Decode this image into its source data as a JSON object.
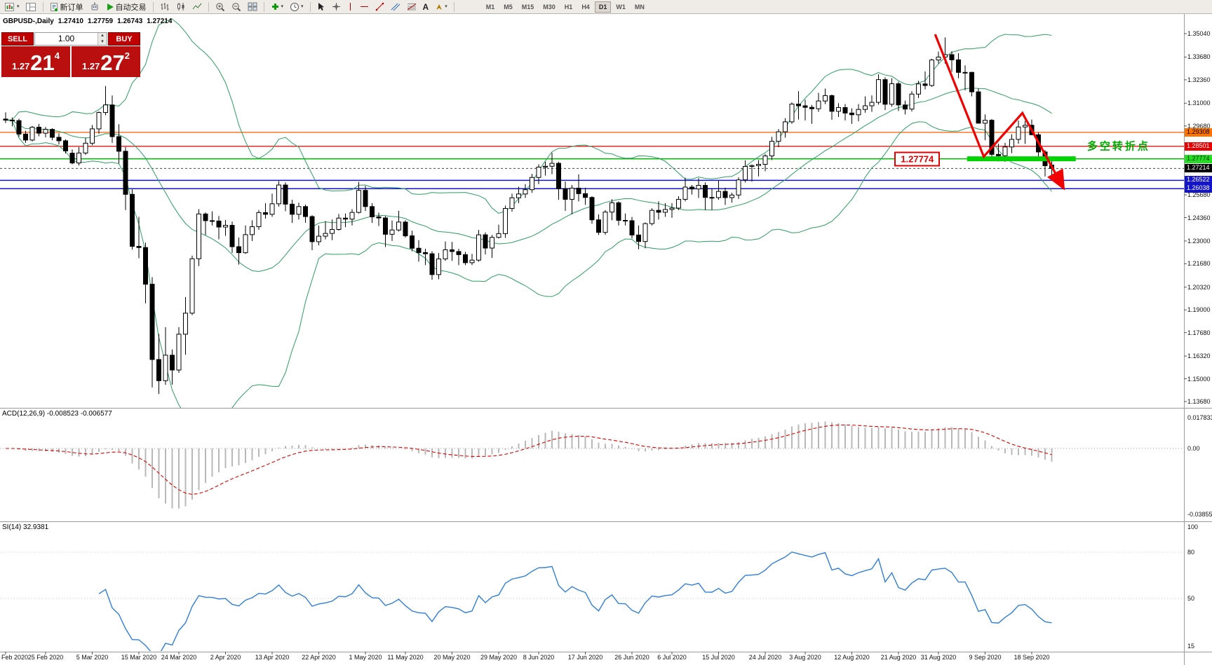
{
  "icons": {
    "caret_down": "▾",
    "spinner_up": "▴",
    "spinner_down": "▾"
  },
  "toolbar": {
    "new_order_label": "新订单",
    "auto_trading_label": "自动交易",
    "text_tool_label": "A",
    "timeframes": [
      "M1",
      "M5",
      "M15",
      "M30",
      "H1",
      "H4",
      "D1",
      "W1",
      "MN"
    ],
    "active_timeframe": "D1"
  },
  "chart_header": {
    "symbol": "GBPUSD-,Daily",
    "open": "1.27410",
    "high": "1.27759",
    "low": "1.26743",
    "close": "1.27214"
  },
  "quote_panel": {
    "sell_label": "SELL",
    "buy_label": "BUY",
    "volume": "1.00",
    "sell_small": "1.27",
    "sell_big": "21",
    "sell_sup": "4",
    "buy_small": "1.27",
    "buy_big": "27",
    "buy_sup": "2"
  },
  "levels": [
    {
      "value": 1.29308,
      "label": "1.29308",
      "color": "#ff5a00",
      "label_bg": "#ff7300",
      "label_fg": "#000000",
      "width": 1.2
    },
    {
      "value": 1.28501,
      "label": "1.28501",
      "color": "#e60000",
      "label_bg": "#e60000",
      "label_fg": "#ffffff",
      "width": 1.2
    },
    {
      "value": 1.27774,
      "label": "1.27774",
      "color": "#00b000",
      "label_bg": "#22dd22",
      "label_fg": "#003300",
      "width": 1.5
    },
    {
      "value": 1.26522,
      "label": "1.26522",
      "color": "#1414c8",
      "label_bg": "#1414c8",
      "label_fg": "#ffffff",
      "width": 1.6
    },
    {
      "value": 1.26038,
      "label": "1.26038",
      "color": "#1414c8",
      "label_bg": "#1414c8",
      "label_fg": "#ffffff",
      "width": 1.6
    }
  ],
  "bid": {
    "value": 1.27214,
    "label": "1.27214",
    "label_bg": "#000000",
    "label_fg": "#ffffff"
  },
  "price_axis": {
    "ticks": [
      "1.35040",
      "1.33680",
      "1.32360",
      "1.31000",
      "1.29680",
      "1.25680",
      "1.24360",
      "1.23000",
      "1.21680",
      "1.20320",
      "1.19000",
      "1.17680",
      "1.16320",
      "1.15000",
      "1.13680"
    ]
  },
  "date_axis": [
    {
      "label": "Feb 2020",
      "index": 0
    },
    {
      "label": "25 Feb 2020",
      "index": 6
    },
    {
      "label": "5 Mar 2020",
      "index": 13
    },
    {
      "label": "15 Mar 2020",
      "index": 20
    },
    {
      "label": "24 Mar 2020",
      "index": 26
    },
    {
      "label": "2 Apr 2020",
      "index": 33
    },
    {
      "label": "13 Apr 2020",
      "index": 40
    },
    {
      "label": "22 Apr 2020",
      "index": 47
    },
    {
      "label": "1 May 2020",
      "index": 54
    },
    {
      "label": "11 May 2020",
      "index": 60
    },
    {
      "label": "20 May 2020",
      "index": 67
    },
    {
      "label": "29 May 2020",
      "index": 74
    },
    {
      "label": "8 Jun 2020",
      "index": 80
    },
    {
      "label": "17 Jun 2020",
      "index": 87
    },
    {
      "label": "26 Jun 2020",
      "index": 94
    },
    {
      "label": "6 Jul 2020",
      "index": 100
    },
    {
      "label": "15 Jul 2020",
      "index": 107
    },
    {
      "label": "24 Jul 2020",
      "index": 114
    },
    {
      "label": "3 Aug 2020",
      "index": 120
    },
    {
      "label": "12 Aug 2020",
      "index": 127
    },
    {
      "label": "21 Aug 2020",
      "index": 134
    },
    {
      "label": "31 Aug 2020",
      "index": 140
    },
    {
      "label": "9 Sep 2020",
      "index": 147
    },
    {
      "label": "18 Sep 2020",
      "index": 154
    }
  ],
  "annotations": {
    "support_price_label": {
      "text": "1.27774",
      "index": 133.4,
      "price": 1.27774
    },
    "turning_point_note": {
      "text": "多空转折点",
      "index": 162.3,
      "price": 1.2853,
      "color": "#00aa00"
    },
    "trend_arrow": {
      "color": "#f00000",
      "points": [
        [
          139.5,
          1.35
        ],
        [
          146.8,
          1.279
        ],
        [
          152.6,
          1.3043
        ],
        [
          158.8,
          1.2605
        ]
      ]
    },
    "support_highlight": {
      "price": 1.27774,
      "start_index": 144.3,
      "end_index": 160.6,
      "color": "#00d400"
    }
  },
  "chart_data": {
    "type": "candlestick",
    "symbol": "GBPUSD",
    "timeframe": "Daily",
    "bollinger": {
      "period": 20,
      "deviation": 2,
      "color": "#2d9e63"
    },
    "macd": {
      "label": "ACD(12,26,9) -0.008523 -0.006577",
      "params": [
        12,
        26,
        9
      ],
      "axis": [
        "0.017833",
        "0.00",
        "-0.038559"
      ]
    },
    "rsi": {
      "label": "SI(14) 32.9381",
      "period": 14,
      "axis": [
        "100",
        "80",
        "50",
        "15"
      ]
    },
    "candles": [
      [
        1.3008,
        1.3047,
        1.2985,
        1.3002
      ],
      [
        1.3002,
        1.3018,
        1.2966,
        1.2999
      ],
      [
        1.2999,
        1.301,
        1.2905,
        1.2921
      ],
      [
        1.2921,
        1.294,
        1.287,
        1.2886
      ],
      [
        1.2886,
        1.2968,
        1.2878,
        1.2961
      ],
      [
        1.2961,
        1.298,
        1.2908,
        1.2926
      ],
      [
        1.2926,
        1.2962,
        1.2902,
        1.2948
      ],
      [
        1.2948,
        1.2955,
        1.2885,
        1.2902
      ],
      [
        1.2902,
        1.2925,
        1.286,
        1.2882
      ],
      [
        1.2882,
        1.289,
        1.2808,
        1.2823
      ],
      [
        1.281,
        1.2831,
        1.2745,
        1.2753
      ],
      [
        1.2753,
        1.2845,
        1.2738,
        1.2811
      ],
      [
        1.2811,
        1.2899,
        1.28,
        1.2868
      ],
      [
        1.2868,
        1.2973,
        1.2856,
        1.2951
      ],
      [
        1.2951,
        1.3052,
        1.2923,
        1.3046
      ],
      [
        1.3046,
        1.32,
        1.303,
        1.309
      ],
      [
        1.309,
        1.3145,
        1.287,
        1.2906
      ],
      [
        1.2906,
        1.2978,
        1.275,
        1.2821
      ],
      [
        1.2821,
        1.2846,
        1.248,
        1.2571
      ],
      [
        1.2571,
        1.26,
        1.225,
        1.2269
      ],
      [
        1.2269,
        1.244,
        1.22,
        1.2262
      ],
      [
        1.2262,
        1.229,
        1.1938,
        1.2049
      ],
      [
        1.2049,
        1.209,
        1.145,
        1.1612
      ],
      [
        1.1612,
        1.176,
        1.1412,
        1.1489
      ],
      [
        1.1489,
        1.18,
        1.1465,
        1.1637
      ],
      [
        1.1637,
        1.167,
        1.1466,
        1.1551
      ],
      [
        1.1551,
        1.18,
        1.1535,
        1.1759
      ],
      [
        1.1759,
        1.1975,
        1.164,
        1.1881
      ],
      [
        1.1881,
        1.2215,
        1.187,
        1.2197
      ],
      [
        1.2197,
        1.2485,
        1.2155,
        1.2457
      ],
      [
        1.2457,
        1.2466,
        1.2335,
        1.2418
      ],
      [
        1.2418,
        1.2472,
        1.239,
        1.2416
      ],
      [
        1.2416,
        1.2445,
        1.231,
        1.2381
      ],
      [
        1.2381,
        1.2422,
        1.233,
        1.2391
      ],
      [
        1.2391,
        1.2413,
        1.223,
        1.2267
      ],
      [
        1.2267,
        1.232,
        1.2163,
        1.2232
      ],
      [
        1.2232,
        1.239,
        1.2225,
        1.2337
      ],
      [
        1.2337,
        1.242,
        1.23,
        1.2383
      ],
      [
        1.2383,
        1.248,
        1.2365,
        1.2465
      ],
      [
        1.2465,
        1.252,
        1.243,
        1.2455
      ],
      [
        1.2455,
        1.2575,
        1.244,
        1.2516
      ],
      [
        1.2516,
        1.2648,
        1.25,
        1.2625
      ],
      [
        1.2625,
        1.264,
        1.2473,
        1.2514
      ],
      [
        1.2514,
        1.254,
        1.2405,
        1.2455
      ],
      [
        1.2455,
        1.2523,
        1.2425,
        1.25
      ],
      [
        1.25,
        1.2512,
        1.2406,
        1.2442
      ],
      [
        1.2442,
        1.245,
        1.2247,
        1.2296
      ],
      [
        1.2296,
        1.239,
        1.2275,
        1.2328
      ],
      [
        1.2328,
        1.2415,
        1.231,
        1.2344
      ],
      [
        1.2344,
        1.2425,
        1.2305,
        1.2367
      ],
      [
        1.2367,
        1.2457,
        1.236,
        1.2433
      ],
      [
        1.2433,
        1.246,
        1.238,
        1.2427
      ],
      [
        1.2427,
        1.2485,
        1.239,
        1.2466
      ],
      [
        1.2466,
        1.2643,
        1.246,
        1.2594
      ],
      [
        1.2594,
        1.262,
        1.2474,
        1.25
      ],
      [
        1.25,
        1.252,
        1.2405,
        1.244
      ],
      [
        1.244,
        1.2465,
        1.2387,
        1.2434
      ],
      [
        1.2434,
        1.2445,
        1.2265,
        1.2339
      ],
      [
        1.2339,
        1.2419,
        1.23,
        1.2364
      ],
      [
        1.2364,
        1.2475,
        1.2355,
        1.241
      ],
      [
        1.241,
        1.242,
        1.232,
        1.233
      ],
      [
        1.233,
        1.236,
        1.224,
        1.2258
      ],
      [
        1.2258,
        1.2305,
        1.218,
        1.2233
      ],
      [
        1.2233,
        1.2255,
        1.216,
        1.2226
      ],
      [
        1.2226,
        1.224,
        1.2075,
        1.2105
      ],
      [
        1.2105,
        1.223,
        1.2078,
        1.2196
      ],
      [
        1.2196,
        1.2297,
        1.2185,
        1.2249
      ],
      [
        1.2249,
        1.2295,
        1.2185,
        1.2239
      ],
      [
        1.2239,
        1.2255,
        1.216,
        1.2221
      ],
      [
        1.2221,
        1.2237,
        1.216,
        1.2174
      ],
      [
        1.2174,
        1.2225,
        1.216,
        1.2189
      ],
      [
        1.2189,
        1.2365,
        1.218,
        1.2336
      ],
      [
        1.2336,
        1.235,
        1.2222,
        1.2259
      ],
      [
        1.2259,
        1.2335,
        1.2202,
        1.2321
      ],
      [
        1.2321,
        1.2395,
        1.2315,
        1.2343
      ],
      [
        1.2343,
        1.2505,
        1.2318,
        1.2489
      ],
      [
        1.2489,
        1.2575,
        1.247,
        1.2551
      ],
      [
        1.2551,
        1.2615,
        1.252,
        1.2573
      ],
      [
        1.2573,
        1.263,
        1.255,
        1.2598
      ],
      [
        1.2598,
        1.269,
        1.258,
        1.2669
      ],
      [
        1.2669,
        1.2745,
        1.263,
        1.2729
      ],
      [
        1.2729,
        1.276,
        1.268,
        1.2734
      ],
      [
        1.2734,
        1.2813,
        1.2688,
        1.2751
      ],
      [
        1.2751,
        1.276,
        1.254,
        1.2604
      ],
      [
        1.2604,
        1.2645,
        1.2475,
        1.2542
      ],
      [
        1.2542,
        1.2625,
        1.2455,
        1.2607
      ],
      [
        1.2607,
        1.2687,
        1.253,
        1.2575
      ],
      [
        1.2575,
        1.261,
        1.251,
        1.2553
      ],
      [
        1.2553,
        1.256,
        1.24,
        1.2423
      ],
      [
        1.2423,
        1.2455,
        1.2335,
        1.235
      ],
      [
        1.235,
        1.248,
        1.2336,
        1.2468
      ],
      [
        1.2468,
        1.2543,
        1.242,
        1.2522
      ],
      [
        1.2522,
        1.253,
        1.239,
        1.242
      ],
      [
        1.242,
        1.246,
        1.239,
        1.2418
      ],
      [
        1.2418,
        1.244,
        1.2315,
        1.2335
      ],
      [
        1.2335,
        1.239,
        1.2252,
        1.2297
      ],
      [
        1.2297,
        1.2408,
        1.2258,
        1.2401
      ],
      [
        1.2401,
        1.249,
        1.239,
        1.2478
      ],
      [
        1.2478,
        1.253,
        1.2425,
        1.2467
      ],
      [
        1.2467,
        1.252,
        1.244,
        1.2483
      ],
      [
        1.2483,
        1.252,
        1.2435,
        1.2491
      ],
      [
        1.2491,
        1.256,
        1.248,
        1.2542
      ],
      [
        1.2542,
        1.2668,
        1.253,
        1.2613
      ],
      [
        1.2613,
        1.2625,
        1.257,
        1.2602
      ],
      [
        1.2602,
        1.2665,
        1.255,
        1.2623
      ],
      [
        1.2623,
        1.264,
        1.248,
        1.2553
      ],
      [
        1.2553,
        1.2605,
        1.248,
        1.2552
      ],
      [
        1.2552,
        1.265,
        1.254,
        1.2588
      ],
      [
        1.2588,
        1.261,
        1.251,
        1.2552
      ],
      [
        1.2552,
        1.258,
        1.2523,
        1.2567
      ],
      [
        1.2567,
        1.267,
        1.2545,
        1.2655
      ],
      [
        1.2655,
        1.2768,
        1.264,
        1.2733
      ],
      [
        1.2733,
        1.2745,
        1.2645,
        1.2738
      ],
      [
        1.2738,
        1.277,
        1.2675,
        1.2745
      ],
      [
        1.2745,
        1.2805,
        1.2705,
        1.2794
      ],
      [
        1.2794,
        1.2905,
        1.277,
        1.2879
      ],
      [
        1.2879,
        1.295,
        1.2845,
        1.2934
      ],
      [
        1.2934,
        1.3013,
        1.29,
        1.2992
      ],
      [
        1.2992,
        1.3105,
        1.298,
        1.3095
      ],
      [
        1.3095,
        1.317,
        1.3005,
        1.3085
      ],
      [
        1.3085,
        1.312,
        1.3,
        1.3076
      ],
      [
        1.3076,
        1.309,
        1.298,
        1.3068
      ],
      [
        1.3068,
        1.316,
        1.305,
        1.3113
      ],
      [
        1.3113,
        1.3185,
        1.3095,
        1.3144
      ],
      [
        1.3144,
        1.315,
        1.3004,
        1.3053
      ],
      [
        1.3053,
        1.31,
        1.302,
        1.3075
      ],
      [
        1.3075,
        1.3095,
        1.3,
        1.3043
      ],
      [
        1.3043,
        1.307,
        1.298,
        1.3033
      ],
      [
        1.3033,
        1.3095,
        1.2995,
        1.3064
      ],
      [
        1.3064,
        1.314,
        1.3045,
        1.3085
      ],
      [
        1.3085,
        1.3145,
        1.305,
        1.3105
      ],
      [
        1.3105,
        1.3268,
        1.3092,
        1.3237
      ],
      [
        1.3237,
        1.325,
        1.306,
        1.3094
      ],
      [
        1.3094,
        1.3245,
        1.308,
        1.3213
      ],
      [
        1.3213,
        1.3225,
        1.3055,
        1.309
      ],
      [
        1.309,
        1.3115,
        1.3035,
        1.3066
      ],
      [
        1.3066,
        1.317,
        1.3052,
        1.3153
      ],
      [
        1.3153,
        1.323,
        1.313,
        1.3212
      ],
      [
        1.3212,
        1.3285,
        1.318,
        1.3203
      ],
      [
        1.3203,
        1.3358,
        1.3195,
        1.3351
      ],
      [
        1.3351,
        1.34,
        1.333,
        1.3368
      ],
      [
        1.3368,
        1.3482,
        1.333,
        1.3382
      ],
      [
        1.3382,
        1.3402,
        1.3283,
        1.3352
      ],
      [
        1.3352,
        1.339,
        1.3245,
        1.3279
      ],
      [
        1.3279,
        1.332,
        1.3175,
        1.3279
      ],
      [
        1.3279,
        1.3283,
        1.314,
        1.3166
      ],
      [
        1.3166,
        1.3186,
        1.2981,
        1.2984
      ],
      [
        1.2984,
        1.3035,
        1.2885,
        1.3001
      ],
      [
        1.3001,
        1.3008,
        1.2773,
        1.2803
      ],
      [
        1.2803,
        1.2865,
        1.2762,
        1.2795
      ],
      [
        1.2795,
        1.287,
        1.276,
        1.2846
      ],
      [
        1.2846,
        1.292,
        1.281,
        1.289
      ],
      [
        1.289,
        1.2999,
        1.2865,
        1.2962
      ],
      [
        1.2962,
        1.2998,
        1.2864,
        1.2972
      ],
      [
        1.2972,
        1.3005,
        1.2915,
        1.2917
      ],
      [
        1.2917,
        1.293,
        1.2775,
        1.2817
      ],
      [
        1.2817,
        1.2828,
        1.2675,
        1.2737
      ],
      [
        1.2741,
        1.27759,
        1.26743,
        1.27214
      ]
    ]
  }
}
